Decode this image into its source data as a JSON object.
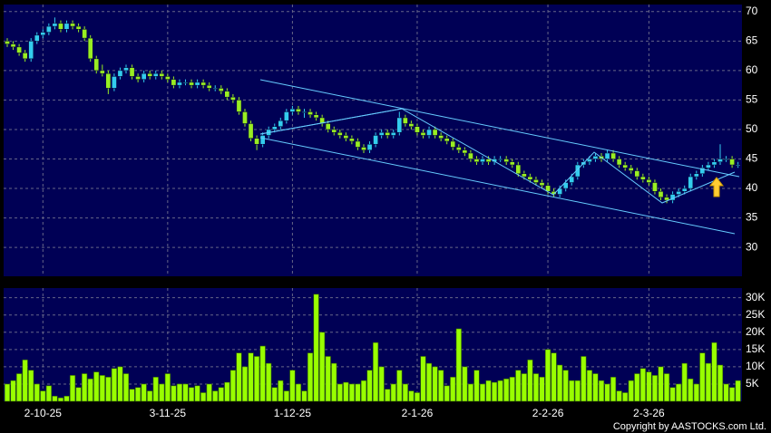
{
  "chart_data": [
    {
      "type": "candlestick",
      "up_color": "#33ccee",
      "down_color": "#99ee22",
      "ylim": [
        25.1,
        71.2
      ],
      "yticks": [
        30,
        35,
        40,
        45,
        50,
        55,
        60,
        65,
        70
      ],
      "grid": true,
      "ohlc": [
        [
          65,
          65.5,
          64,
          64.5
        ],
        [
          64.5,
          65,
          63.5,
          64
        ],
        [
          64,
          64.5,
          62.5,
          63
        ],
        [
          63,
          63.5,
          61.5,
          62
        ],
        [
          62,
          65.5,
          61.5,
          65
        ],
        [
          65,
          66.5,
          64.5,
          66
        ],
        [
          66,
          67,
          65.5,
          66.5
        ],
        [
          66.5,
          68,
          66,
          67.5
        ],
        [
          67.5,
          69,
          67,
          68
        ],
        [
          68,
          68.5,
          66.5,
          67
        ],
        [
          67,
          68.5,
          66.5,
          68
        ],
        [
          68,
          68.5,
          67,
          67.5
        ],
        [
          67.5,
          68,
          66.5,
          67
        ],
        [
          67,
          67.5,
          65,
          65.5
        ],
        [
          65.5,
          66,
          61.5,
          62
        ],
        [
          62,
          62.5,
          59.5,
          60
        ],
        [
          60,
          61,
          59,
          59.5
        ],
        [
          59.5,
          60,
          56,
          57
        ],
        [
          57,
          59.5,
          56.5,
          59
        ],
        [
          59,
          60.5,
          58.5,
          60
        ],
        [
          60,
          61,
          59.5,
          60.5
        ],
        [
          60.5,
          61,
          58.5,
          59
        ],
        [
          59,
          59.5,
          58,
          58.5
        ],
        [
          58.5,
          60,
          58,
          59.5
        ],
        [
          59.5,
          60,
          58.5,
          59
        ],
        [
          59,
          60,
          58.5,
          59.5
        ],
        [
          59.5,
          60,
          58.5,
          59
        ],
        [
          59,
          59.5,
          58,
          58.5
        ],
        [
          58.5,
          59,
          57,
          57.5
        ],
        [
          57.5,
          58.5,
          57,
          58
        ],
        [
          58,
          58.5,
          57.5,
          58
        ],
        [
          58,
          58.5,
          57,
          57.5
        ],
        [
          57.5,
          58.5,
          57,
          58
        ],
        [
          58,
          58.5,
          57,
          57.5
        ],
        [
          57.5,
          58,
          56.5,
          57
        ],
        [
          57,
          57.5,
          56.5,
          57
        ],
        [
          57,
          57.5,
          56,
          56.5
        ],
        [
          56.5,
          57,
          55,
          55.5
        ],
        [
          55.5,
          56,
          54.5,
          55
        ],
        [
          55,
          55.5,
          52.5,
          53
        ],
        [
          53,
          53.5,
          50.5,
          51
        ],
        [
          51,
          51.5,
          48,
          48.5
        ],
        [
          48.5,
          49,
          46.5,
          47.5
        ],
        [
          47.5,
          49.5,
          47,
          49
        ],
        [
          49,
          50.5,
          48.5,
          50
        ],
        [
          50,
          51,
          49.5,
          50.5
        ],
        [
          50.5,
          52,
          50,
          51.5
        ],
        [
          51.5,
          53.5,
          51,
          53
        ],
        [
          53,
          54,
          52.5,
          53.5
        ],
        [
          53.5,
          54,
          52.5,
          53
        ],
        [
          53,
          53.5,
          52,
          53
        ],
        [
          53,
          53.5,
          52,
          52.5
        ],
        [
          52.5,
          53,
          51.5,
          52
        ],
        [
          52,
          52.5,
          50.5,
          51
        ],
        [
          51,
          51.5,
          49.5,
          50
        ],
        [
          50,
          50.5,
          49,
          49.5
        ],
        [
          49.5,
          50,
          48.5,
          49
        ],
        [
          49,
          49.5,
          48,
          48.5
        ],
        [
          48.5,
          49,
          47.5,
          48
        ],
        [
          48,
          48.5,
          46.5,
          47
        ],
        [
          47,
          47.5,
          46,
          46.5
        ],
        [
          46.5,
          48,
          46,
          47.5
        ],
        [
          47.5,
          49.5,
          47,
          49
        ],
        [
          49,
          50,
          48.5,
          49.5
        ],
        [
          49.5,
          50,
          48.5,
          49
        ],
        [
          49,
          50,
          48.5,
          49.5
        ],
        [
          49.5,
          53,
          49,
          52
        ],
        [
          52,
          52.5,
          50.5,
          51
        ],
        [
          51,
          51.5,
          50,
          50.5
        ],
        [
          50.5,
          51,
          49,
          49.5
        ],
        [
          49.5,
          50,
          48.5,
          49
        ],
        [
          49,
          50.5,
          48.5,
          50
        ],
        [
          50,
          50.5,
          48.5,
          49
        ],
        [
          49,
          49.5,
          48,
          48.5
        ],
        [
          48.5,
          49,
          47.5,
          48
        ],
        [
          48,
          48.5,
          46.5,
          47
        ],
        [
          47,
          47.5,
          46,
          46.5
        ],
        [
          46.5,
          47,
          45.5,
          46
        ],
        [
          46,
          46.5,
          44.5,
          45
        ],
        [
          45,
          45.5,
          44,
          44.5
        ],
        [
          44.5,
          45.5,
          44,
          45
        ],
        [
          45,
          45.5,
          44,
          44.5
        ],
        [
          44.5,
          45.5,
          44,
          45
        ],
        [
          45,
          45.5,
          44.5,
          45
        ],
        [
          45,
          45.5,
          44,
          44.5
        ],
        [
          44.5,
          45,
          43.5,
          44
        ],
        [
          44,
          44.5,
          42,
          42.5
        ],
        [
          42.5,
          43,
          41.5,
          42
        ],
        [
          42,
          42.5,
          41,
          41.5
        ],
        [
          41.5,
          42,
          40.5,
          41
        ],
        [
          41,
          41.5,
          40,
          40.5
        ],
        [
          40.5,
          41,
          39,
          39.5
        ],
        [
          39.5,
          40,
          38.5,
          39
        ],
        [
          39,
          40.5,
          38.5,
          40
        ],
        [
          40,
          41.5,
          39.5,
          41
        ],
        [
          41,
          42.5,
          40.5,
          42
        ],
        [
          42,
          44.5,
          41.5,
          44
        ],
        [
          44,
          45,
          43.5,
          44.5
        ],
        [
          44.5,
          45.5,
          44,
          45
        ],
        [
          45,
          46,
          44.5,
          45.5
        ],
        [
          45.5,
          46,
          44.5,
          45
        ],
        [
          45,
          46.5,
          44.5,
          46
        ],
        [
          46,
          46.5,
          44.5,
          45
        ],
        [
          45,
          45.5,
          43.5,
          44
        ],
        [
          44,
          44.5,
          43,
          43.5
        ],
        [
          43.5,
          44,
          42.5,
          43
        ],
        [
          43,
          43.5,
          41.5,
          42
        ],
        [
          42,
          42.5,
          41,
          41.5
        ],
        [
          41.5,
          42,
          40.5,
          41
        ],
        [
          41,
          41.5,
          39,
          39.5
        ],
        [
          39.5,
          40,
          38,
          38.5
        ],
        [
          38.5,
          39,
          37.5,
          38
        ],
        [
          38,
          39.5,
          37.5,
          39
        ],
        [
          39,
          40,
          38.5,
          39.5
        ],
        [
          39.5,
          40.5,
          39,
          40
        ],
        [
          40,
          42.5,
          39.5,
          42
        ],
        [
          42,
          43,
          41.5,
          42.5
        ],
        [
          42.5,
          44,
          42,
          43.5
        ],
        [
          43.5,
          44.5,
          43,
          44
        ],
        [
          44,
          45,
          43.5,
          44.5
        ],
        [
          44.5,
          47.5,
          44,
          45
        ],
        [
          45,
          45.5,
          44.5,
          45
        ],
        [
          45,
          45.5,
          43.5,
          44
        ],
        [
          44,
          44.5,
          43.5,
          44
        ]
      ]
    },
    {
      "type": "bar",
      "color": "#99ff00",
      "ylim": [
        0,
        32800
      ],
      "yticks": [
        {
          "value": 5000,
          "label": "5K"
        },
        {
          "value": 10000,
          "label": "10K"
        },
        {
          "value": 15000,
          "label": "15K"
        },
        {
          "value": 20000,
          "label": "20K"
        },
        {
          "value": 25000,
          "label": "25K"
        },
        {
          "value": 30000,
          "label": "30K"
        }
      ],
      "grid": true,
      "source": "Copyright by AASTOCKS.com Ltd.",
      "categories": [
        null,
        null,
        null,
        null,
        null,
        null,
        "2-10-25",
        null,
        null,
        null,
        null,
        null,
        null,
        null,
        null,
        null,
        null,
        null,
        null,
        null,
        null,
        null,
        null,
        null,
        null,
        null,
        null,
        "3-11-25",
        null,
        null,
        null,
        null,
        null,
        null,
        null,
        null,
        null,
        null,
        null,
        null,
        null,
        null,
        null,
        null,
        null,
        null,
        null,
        null,
        "1-12-25",
        null,
        null,
        null,
        null,
        null,
        null,
        null,
        null,
        null,
        null,
        null,
        null,
        null,
        null,
        null,
        null,
        null,
        null,
        null,
        null,
        "2-1-26",
        null,
        null,
        null,
        null,
        null,
        null,
        null,
        null,
        null,
        null,
        null,
        null,
        null,
        null,
        null,
        null,
        null,
        null,
        null,
        null,
        null,
        "2-2-26",
        null,
        null,
        null,
        null,
        null,
        null,
        null,
        null,
        null,
        null,
        null,
        null,
        null,
        null,
        null,
        null,
        "2-3-26",
        null,
        null,
        null,
        null,
        null,
        null,
        null,
        null,
        null,
        null,
        null,
        null,
        null,
        null,
        null
      ],
      "values": [
        5000,
        6000,
        8000,
        12000,
        9000,
        5000,
        3000,
        4500,
        1500,
        1000,
        1500,
        7500,
        4000,
        8000,
        6500,
        8500,
        7500,
        7000,
        9500,
        10000,
        8000,
        3500,
        4000,
        5000,
        3000,
        7000,
        5000,
        8000,
        4500,
        5000,
        5000,
        4000,
        4500,
        2500,
        5000,
        3000,
        4000,
        5500,
        9000,
        14000,
        10000,
        14000,
        13000,
        16000,
        11000,
        4000,
        6000,
        3000,
        9000,
        5000,
        3000,
        14000,
        31000,
        20000,
        13000,
        11000,
        5000,
        5500,
        5000,
        5000,
        6000,
        9000,
        17000,
        10000,
        3500,
        5000,
        9000,
        5000,
        3000,
        2500,
        13000,
        11000,
        10000,
        9000,
        4500,
        7000,
        21000,
        10000,
        5000,
        9000,
        5000,
        6000,
        5500,
        6000,
        6500,
        7000,
        9000,
        8000,
        12000,
        8000,
        7000,
        15000,
        14000,
        10500,
        9000,
        6000,
        6000,
        13000,
        9000,
        8000,
        6000,
        5000,
        7000,
        3000,
        2500,
        6000,
        8000,
        9500,
        8500,
        7500,
        10000,
        8000,
        4000,
        5000,
        11000,
        6500,
        5000,
        14000,
        11000,
        17000,
        10500,
        5000,
        4000,
        6000
      ]
    }
  ]
}
